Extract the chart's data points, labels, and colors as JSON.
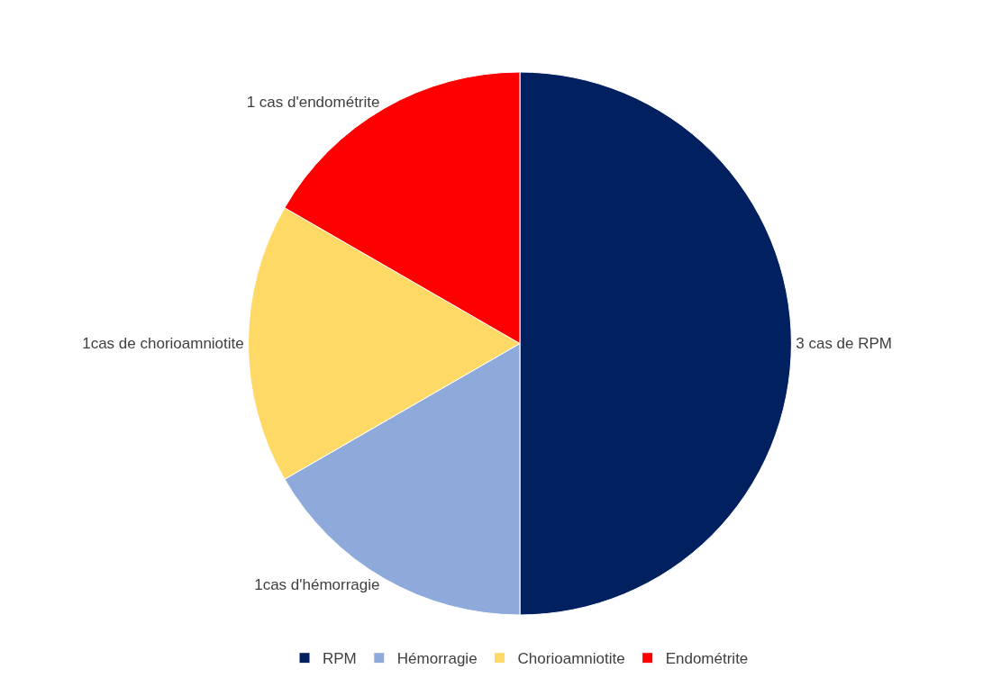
{
  "chart_data": {
    "type": "pie",
    "categories": [
      "RPM",
      "Hémorragie",
      "Chorioamniotite",
      "Endométrite"
    ],
    "values": [
      3,
      1,
      1,
      1
    ],
    "colors": [
      "#002060",
      "#8eaadb",
      "#ffd966",
      "#ff0000"
    ],
    "value_labels": [
      "3 cas de RPM",
      "1cas d'hémorragie",
      "1cas de chorioamniotite",
      "1 cas d'endométrite"
    ],
    "legend": "bottom"
  }
}
